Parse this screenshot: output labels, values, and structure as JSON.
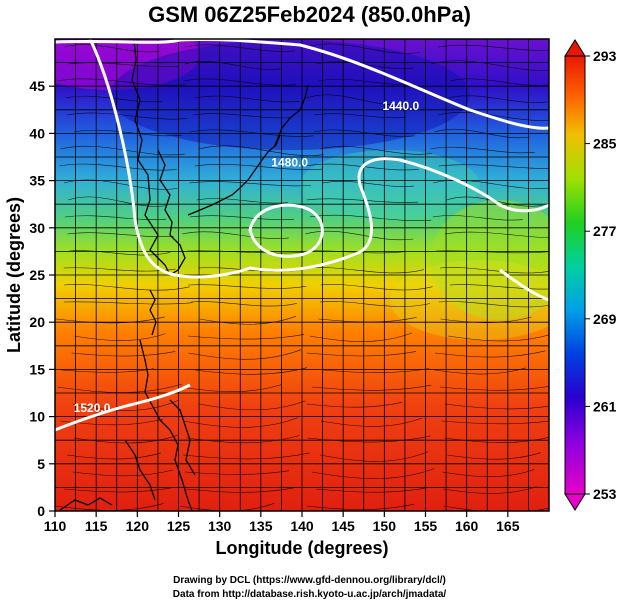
{
  "title": "GSM 06Z25Feb2024 (850.0hPa)",
  "x_axis": {
    "label": "Longitude (degrees)",
    "range": [
      110,
      170
    ],
    "ticks": [
      "110",
      "115",
      "120",
      "125",
      "130",
      "135",
      "140",
      "145",
      "150",
      "155",
      "160",
      "165"
    ]
  },
  "y_axis": {
    "label": "Latitude  (degrees)",
    "range": [
      0,
      50
    ],
    "ticks": [
      "0",
      "5",
      "10",
      "15",
      "20",
      "25",
      "30",
      "35",
      "40",
      "45"
    ]
  },
  "colorbar": {
    "ticks": [
      "253",
      "261",
      "269",
      "277",
      "285",
      "293"
    ],
    "min": 253,
    "max": 293
  },
  "contour_labels": [
    {
      "text": "1440.0",
      "lon": 152,
      "lat": 42.5
    },
    {
      "text": "1480.0",
      "lon": 138.5,
      "lat": 36.5
    },
    {
      "text": "1520.0",
      "lon": 114.5,
      "lat": 10.5
    }
  ],
  "credits": {
    "line1": "Drawing by DCL (https://www.gfd-dennou.org/library/dcl/)",
    "line2": "Data from http://database.rish.kyoto-u.ac.jp/arch/jmadata/"
  },
  "colors": {
    "contour": "#ffffff",
    "coast": "#000000",
    "grid": "#000000"
  },
  "chart_data": {
    "type": "heatmap",
    "title": "GSM 06Z25Feb2024 (850.0hPa)",
    "xlabel": "Longitude (degrees)",
    "ylabel": "Latitude  (degrees)",
    "xlim": [
      110,
      170
    ],
    "ylim": [
      0,
      50
    ],
    "variable_range": [
      253,
      293
    ],
    "colorbar_ticks": [
      253,
      261,
      269,
      277,
      285,
      293
    ],
    "contour_levels": [
      1440,
      1480,
      1520
    ]
  }
}
